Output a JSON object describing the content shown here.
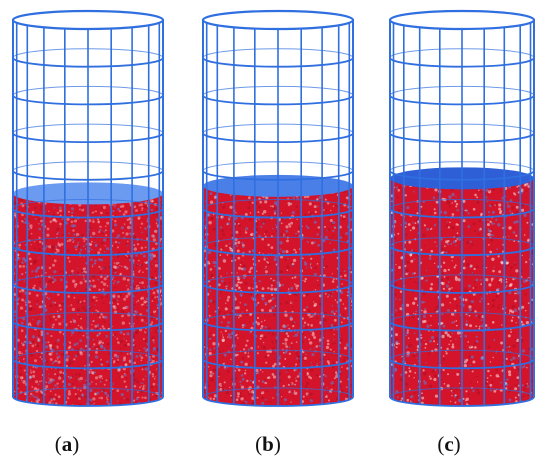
{
  "panels": [
    {
      "id": "a",
      "label_open": "(",
      "letter": "a",
      "label_close": ")",
      "particle_fraction": 0.54,
      "surface_color": "#6b9bf0",
      "density": 1.0
    },
    {
      "id": "b",
      "label_open": "(",
      "letter": "b",
      "label_close": ")",
      "particle_fraction": 0.56,
      "surface_color": "#4a7fe8",
      "density": 0.8
    },
    {
      "id": "c",
      "label_open": "(",
      "letter": "c",
      "label_close": ")",
      "particle_fraction": 0.58,
      "surface_color": "#2f5fd6",
      "density": 0.65
    }
  ],
  "colors": {
    "mesh": "#2f6fe0",
    "particles": "#d4142a",
    "particles_dark": "#a80f22",
    "background": "#ffffff"
  }
}
